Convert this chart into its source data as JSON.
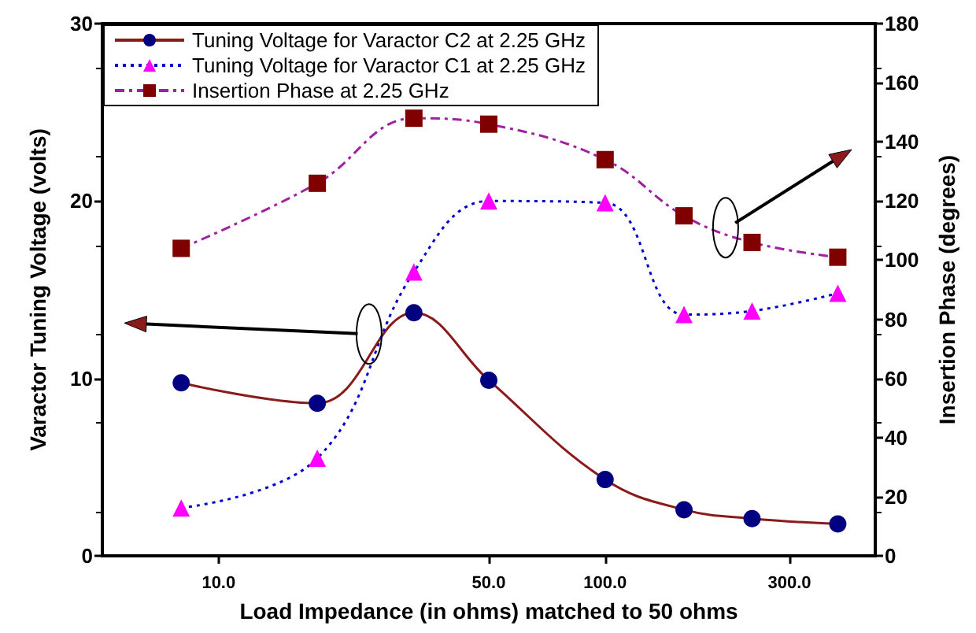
{
  "chart_data": {
    "type": "line",
    "xlabel": "Load Impedance (in ohms) matched to 50 ohms",
    "ylabel": "Varactor Tuning Voltage (volts)",
    "y2label": "Insertion Phase (degrees)",
    "x": [
      8,
      18,
      32,
      50,
      100,
      160,
      240,
      400
    ],
    "series": [
      {
        "name": "Tuning Voltage for Varactor C2 at 2.25 GHz",
        "color": "#000080",
        "marker": "circle",
        "line_style": "solid",
        "values": [
          9.75,
          8.6,
          13.7,
          9.9,
          4.3,
          2.6,
          2.1,
          1.8
        ]
      },
      {
        "name": "Tuning Voltage for Varactor C1 at 2.25 GHz",
        "color": "#ff00ff",
        "marker": "triangle",
        "line_style": "dotted",
        "values": [
          2.7,
          5.5,
          16.0,
          20.0,
          19.9,
          13.6,
          13.8,
          14.8
        ]
      },
      {
        "name": "Insertion Phase at 2.25 GHz",
        "color": "#800000",
        "marker": "square",
        "line_style": "dashdot",
        "axis": "y2",
        "values": [
          104,
          126,
          148,
          146,
          134,
          115,
          106,
          101
        ]
      }
    ],
    "log": "x",
    "xlim": [
      5,
      500
    ],
    "xticks": [
      {
        "value": 10,
        "label": "10.0"
      },
      {
        "value": 50,
        "label": "50.0"
      },
      {
        "value": 100,
        "label": "100.0"
      },
      {
        "value": 300,
        "label": "300.0"
      }
    ],
    "ylim": [
      0,
      30
    ],
    "yticks": [
      0,
      10,
      20,
      30
    ],
    "y2lim": [
      0,
      180
    ],
    "y2ticks": [
      0,
      20,
      40,
      60,
      80,
      100,
      120,
      140,
      160,
      180
    ],
    "grid": false,
    "legend": "top left"
  }
}
